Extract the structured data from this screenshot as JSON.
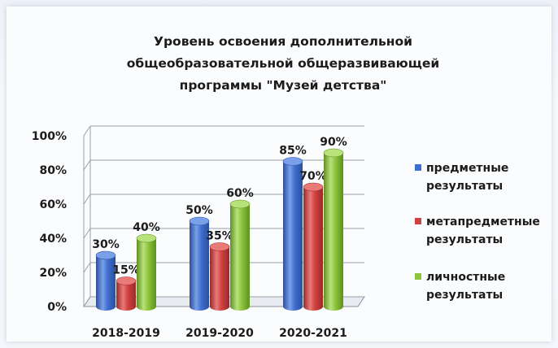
{
  "chart_data": {
    "type": "bar",
    "title_lines": [
      "Уровень освоения дополнительной",
      "общеобразовательной общеразвивающей",
      "программы  \"Музей детства\""
    ],
    "categories": [
      "2018-2019",
      "2019-2020",
      "2020-2021"
    ],
    "series": [
      {
        "name": "предметные результаты",
        "values": [
          30,
          50,
          85
        ],
        "color": "#3f6fd0",
        "colorDark": "#2c4f9a",
        "colorLight": "#7aa0ea"
      },
      {
        "name": "метапредметные результаты",
        "values": [
          15,
          35,
          70
        ],
        "color": "#d0403d",
        "colorDark": "#98292a",
        "colorLight": "#ea7a78"
      },
      {
        "name": "личностные результаты",
        "values": [
          40,
          60,
          90
        ],
        "color": "#8cc43c",
        "colorDark": "#5e8f20",
        "colorLight": "#b8e27a"
      }
    ],
    "data_labels": [
      [
        "30%",
        "50%",
        "85%"
      ],
      [
        "15%",
        "35%",
        "70%"
      ],
      [
        "40%",
        "60%",
        "90%"
      ]
    ],
    "yticks": [
      "0%",
      "20%",
      "40%",
      "60%",
      "80%",
      "100%"
    ],
    "ylim": [
      0,
      100
    ],
    "grid": true,
    "legend_position": "right"
  }
}
